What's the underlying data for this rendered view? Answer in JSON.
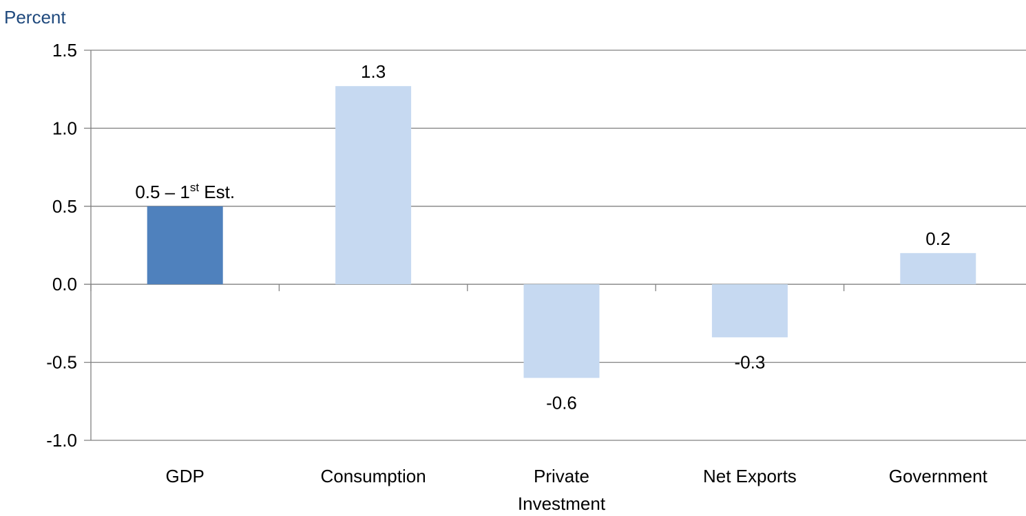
{
  "chart_data": {
    "type": "bar",
    "ylabel": "Percent",
    "categories": [
      [
        "GDP"
      ],
      [
        "Consumption"
      ],
      [
        "Private",
        "Investment"
      ],
      [
        "Net Exports"
      ],
      [
        "Government"
      ]
    ],
    "values": [
      0.5,
      1.27,
      -0.6,
      -0.34,
      0.2
    ],
    "data_labels": [
      {
        "main": "0.5 – 1",
        "sup": "st",
        "tail": " Est."
      },
      {
        "main": "1.3"
      },
      {
        "main": "-0.6"
      },
      {
        "main": "-0.3"
      },
      {
        "main": "0.2"
      }
    ],
    "ylim": [
      -1.0,
      1.5
    ],
    "yticks": [
      1.5,
      1.0,
      0.5,
      0.0,
      -0.5,
      -1.0
    ],
    "ytick_labels": [
      "1.5",
      "1.0",
      "0.5",
      "0.0",
      "-0.5",
      "-1.0"
    ],
    "grid": true,
    "legend": "none",
    "colors": {
      "highlight": "#4f81bd",
      "bar": "#c6d9f1",
      "grid": "#808080",
      "unit_label": "#1f497d"
    },
    "highlight_index": 0
  }
}
